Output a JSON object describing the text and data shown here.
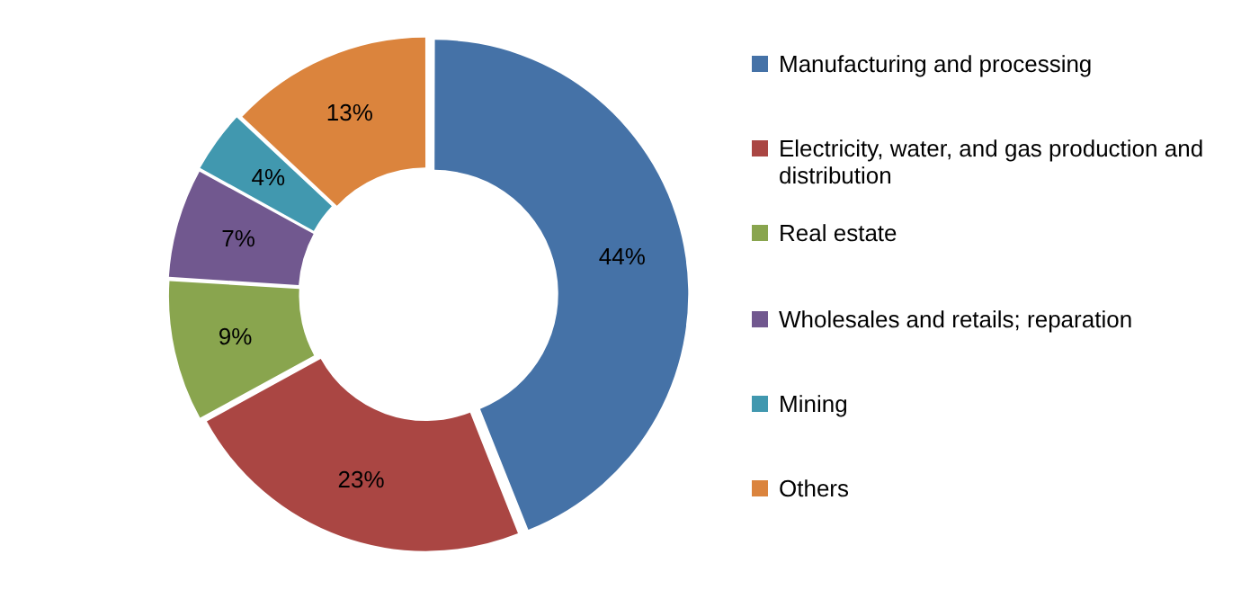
{
  "chart_data": {
    "type": "donut",
    "categories": [
      "Manufacturing and processing",
      "Electricity, water, and gas production and distribution",
      "Real estate",
      "Wholesales and retails; reparation",
      "Mining",
      "Others"
    ],
    "values": [
      44,
      23,
      9,
      7,
      4,
      13
    ],
    "value_labels": [
      "44%",
      "23%",
      "9%",
      "7%",
      "4%",
      "13%"
    ],
    "colors": [
      "#4572a7",
      "#aa4643",
      "#89a54e",
      "#71588f",
      "#4198af",
      "#db843d"
    ],
    "legend": "right"
  }
}
